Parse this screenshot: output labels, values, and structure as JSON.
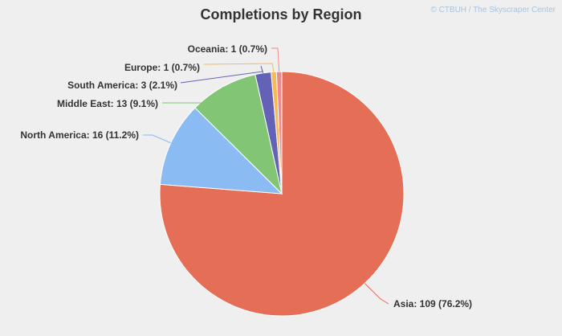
{
  "chart_data": {
    "type": "pie",
    "title": "Completions by Region",
    "credit": "© CTBUH / The Skyscraper Center",
    "slices": [
      {
        "name": "Asia",
        "value": 109,
        "percent": 76.2,
        "label": "Asia: 109 (76.2%)",
        "color": "#e46e56"
      },
      {
        "name": "North America",
        "value": 16,
        "percent": 11.2,
        "label": "North America: 16 (11.2%)",
        "color": "#8abbf2"
      },
      {
        "name": "Middle East",
        "value": 13,
        "percent": 9.1,
        "label": "Middle East: 13 (9.1%)",
        "color": "#82c675"
      },
      {
        "name": "South America",
        "value": 3,
        "percent": 2.1,
        "label": "South America: 3 (2.1%)",
        "color": "#6462b6"
      },
      {
        "name": "Europe",
        "value": 1,
        "percent": 0.7,
        "label": "Europe: 1 (0.7%)",
        "color": "#f6b955"
      },
      {
        "name": "Oceania",
        "value": 1,
        "percent": 0.7,
        "label": "Oceania: 1 (0.7%)",
        "color": "#f08a8a"
      }
    ]
  }
}
